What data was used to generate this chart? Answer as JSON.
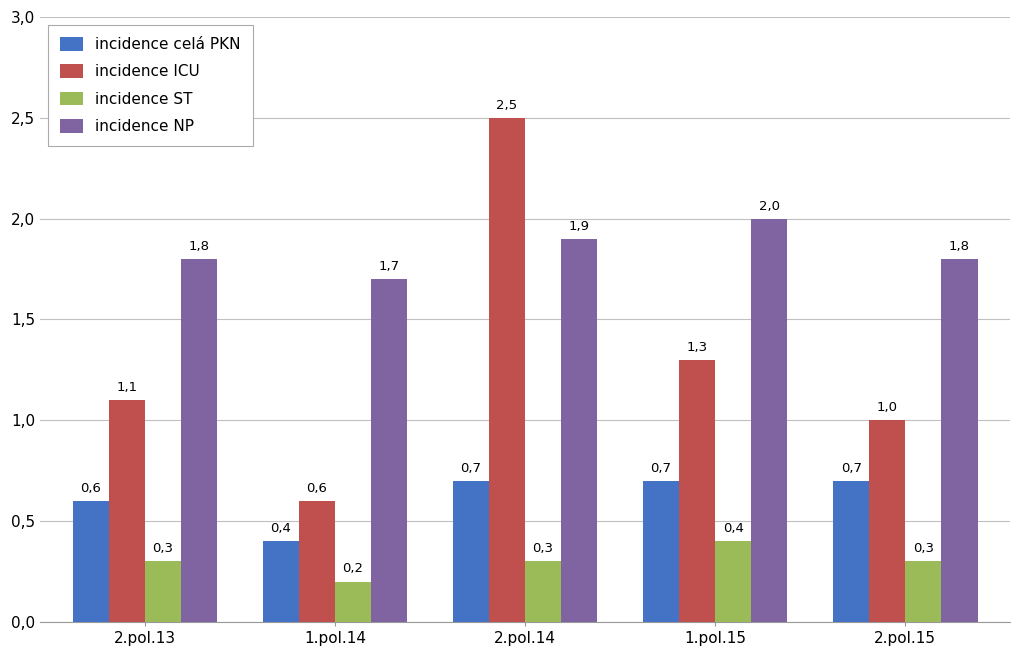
{
  "categories": [
    "2.pol.13",
    "1.pol.14",
    "2.pol.14",
    "1.pol.15",
    "2.pol.15"
  ],
  "series": [
    {
      "label": "incidence celá PKN",
      "color": "#4472C4",
      "values": [
        0.6,
        0.4,
        0.7,
        0.7,
        0.7
      ]
    },
    {
      "label": "incidence ICU",
      "color": "#C0504D",
      "values": [
        1.1,
        0.6,
        2.5,
        1.3,
        1.0
      ]
    },
    {
      "label": "incidence ST",
      "color": "#9BBB59",
      "values": [
        0.3,
        0.2,
        0.3,
        0.4,
        0.3
      ]
    },
    {
      "label": "incidence NP",
      "color": "#8064A2",
      "values": [
        1.8,
        1.7,
        1.9,
        2.0,
        1.8
      ]
    }
  ],
  "ylim": [
    0,
    3.0
  ],
  "yticks": [
    0.0,
    0.5,
    1.0,
    1.5,
    2.0,
    2.5,
    3.0
  ],
  "ytick_labels": [
    "0,0",
    "0,5",
    "1,0",
    "1,5",
    "2,0",
    "2,5",
    "3,0"
  ],
  "bar_width": 0.19,
  "background_color": "#FFFFFF",
  "grid_color": "#C0C0C0",
  "legend_fontsize": 11,
  "label_fontsize": 9.5,
  "tick_fontsize": 11,
  "figure_width": 10.21,
  "figure_height": 6.57
}
